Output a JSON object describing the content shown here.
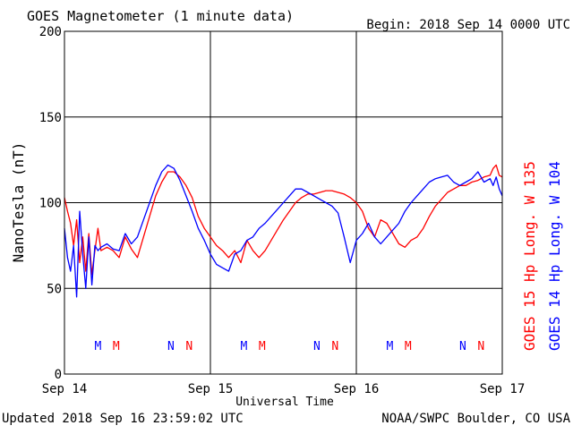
{
  "header": {
    "title": "GOES Magnetometer (1 minute data)",
    "begin": "Begin:  2018 Sep 14 0000 UTC"
  },
  "footer": {
    "updated": "Updated 2018 Sep 16 23:59:02 UTC",
    "credit": "NOAA/SWPC Boulder, CO USA"
  },
  "colors": {
    "goes15": "#ff0000",
    "goes14": "#0000ff",
    "grid": "#000000"
  },
  "chart_data": {
    "type": "line",
    "title": "GOES Magnetometer (1 minute data)",
    "xlabel": "Universal Time",
    "ylabel": "NanoTesla (nT)",
    "ylim": [
      0,
      200
    ],
    "xlim": [
      0,
      72
    ],
    "x_unit": "hours since 2018 Sep 14 0000 UTC",
    "y_ticks": [
      0,
      50,
      100,
      150,
      200
    ],
    "x_ticks": [
      {
        "x": 0,
        "label": "Sep 14"
      },
      {
        "x": 24,
        "label": "Sep 15"
      },
      {
        "x": 48,
        "label": "Sep 16"
      },
      {
        "x": 72,
        "label": "Sep 17"
      }
    ],
    "grid": true,
    "series": [
      {
        "name": "GOES 15 Hp  Long. W 135",
        "color": "#ff0000",
        "x": [
          0,
          0.5,
          1,
          1.5,
          2,
          2.5,
          3,
          3.5,
          4,
          4.5,
          5,
          5.5,
          6,
          7,
          8,
          9,
          10,
          11,
          12,
          13,
          14,
          15,
          16,
          17,
          18,
          19,
          20,
          21,
          22,
          23,
          24,
          25,
          26,
          27,
          28,
          29,
          30,
          31,
          32,
          33,
          34,
          35,
          36,
          37,
          38,
          39,
          40,
          41,
          42,
          43,
          44,
          45,
          46,
          47,
          48,
          49,
          50,
          51,
          52,
          53,
          54,
          55,
          56,
          57,
          58,
          59,
          60,
          61,
          62,
          63,
          64,
          65,
          66,
          67,
          68,
          69,
          70,
          70.5,
          71,
          71.5,
          72
        ],
        "values": [
          103,
          95,
          88,
          75,
          90,
          65,
          80,
          60,
          82,
          58,
          72,
          85,
          72,
          74,
          72,
          68,
          80,
          73,
          68,
          80,
          92,
          104,
          112,
          118,
          118,
          115,
          110,
          103,
          92,
          85,
          80,
          75,
          72,
          68,
          72,
          65,
          78,
          72,
          68,
          72,
          78,
          84,
          90,
          95,
          100,
          103,
          105,
          105,
          106,
          107,
          107,
          106,
          105,
          103,
          100,
          95,
          85,
          80,
          90,
          88,
          82,
          76,
          74,
          78,
          80,
          85,
          92,
          98,
          102,
          106,
          108,
          110,
          110,
          112,
          113,
          115,
          116,
          120,
          122,
          116,
          115
        ]
      },
      {
        "name": "GOES 14 Hp  Long. W 104",
        "color": "#0000ff",
        "x": [
          0,
          0.5,
          1,
          1.5,
          2,
          2.5,
          3,
          3.5,
          4,
          4.5,
          5,
          5.5,
          6,
          7,
          8,
          9,
          10,
          11,
          12,
          13,
          14,
          15,
          16,
          17,
          18,
          19,
          20,
          21,
          22,
          23,
          24,
          25,
          26,
          27,
          28,
          29,
          30,
          31,
          32,
          33,
          34,
          35,
          36,
          37,
          38,
          39,
          40,
          41,
          42,
          43,
          44,
          45,
          46,
          47,
          48,
          49,
          50,
          51,
          52,
          53,
          54,
          55,
          56,
          57,
          58,
          59,
          60,
          61,
          62,
          63,
          64,
          65,
          66,
          67,
          68,
          69,
          70,
          70.5,
          71,
          71.5,
          72
        ],
        "values": [
          85,
          68,
          60,
          75,
          45,
          95,
          70,
          50,
          80,
          52,
          75,
          72,
          74,
          76,
          73,
          72,
          82,
          76,
          80,
          90,
          100,
          110,
          118,
          122,
          120,
          113,
          104,
          95,
          85,
          78,
          70,
          64,
          62,
          60,
          70,
          72,
          78,
          80,
          85,
          88,
          92,
          96,
          100,
          104,
          108,
          108,
          106,
          104,
          102,
          100,
          98,
          94,
          80,
          65,
          78,
          82,
          88,
          80,
          76,
          80,
          84,
          88,
          95,
          100,
          104,
          108,
          112,
          114,
          115,
          116,
          112,
          110,
          112,
          114,
          118,
          112,
          114,
          110,
          115,
          108,
          104
        ]
      }
    ],
    "markers": [
      {
        "x": 5.5,
        "label": "M",
        "color": "#0000ff"
      },
      {
        "x": 8.5,
        "label": "M",
        "color": "#ff0000"
      },
      {
        "x": 17.5,
        "label": "N",
        "color": "#0000ff"
      },
      {
        "x": 20.5,
        "label": "N",
        "color": "#ff0000"
      },
      {
        "x": 29.5,
        "label": "M",
        "color": "#0000ff"
      },
      {
        "x": 32.5,
        "label": "M",
        "color": "#ff0000"
      },
      {
        "x": 41.5,
        "label": "N",
        "color": "#0000ff"
      },
      {
        "x": 44.5,
        "label": "N",
        "color": "#ff0000"
      },
      {
        "x": 53.5,
        "label": "M",
        "color": "#0000ff"
      },
      {
        "x": 56.5,
        "label": "M",
        "color": "#ff0000"
      },
      {
        "x": 65.5,
        "label": "N",
        "color": "#0000ff"
      },
      {
        "x": 68.5,
        "label": "N",
        "color": "#ff0000"
      }
    ]
  }
}
